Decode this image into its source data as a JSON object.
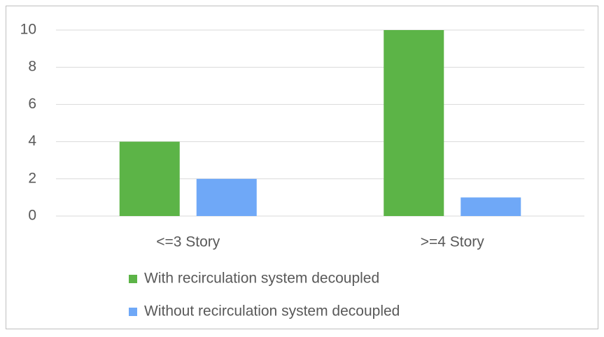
{
  "chart_data": {
    "type": "bar",
    "categories": [
      "<=3 Story",
      ">=4 Story"
    ],
    "series": [
      {
        "name": "With recirculation system decoupled",
        "color": "#5cb447",
        "values": [
          4,
          10
        ]
      },
      {
        "name": "Without recirculation system decoupled",
        "color": "#6fa8f7",
        "values": [
          2,
          1
        ]
      }
    ],
    "ylim": [
      0,
      10
    ],
    "yticks": [
      0,
      2,
      4,
      6,
      8,
      10
    ],
    "grid": true,
    "legend": "bottom"
  }
}
